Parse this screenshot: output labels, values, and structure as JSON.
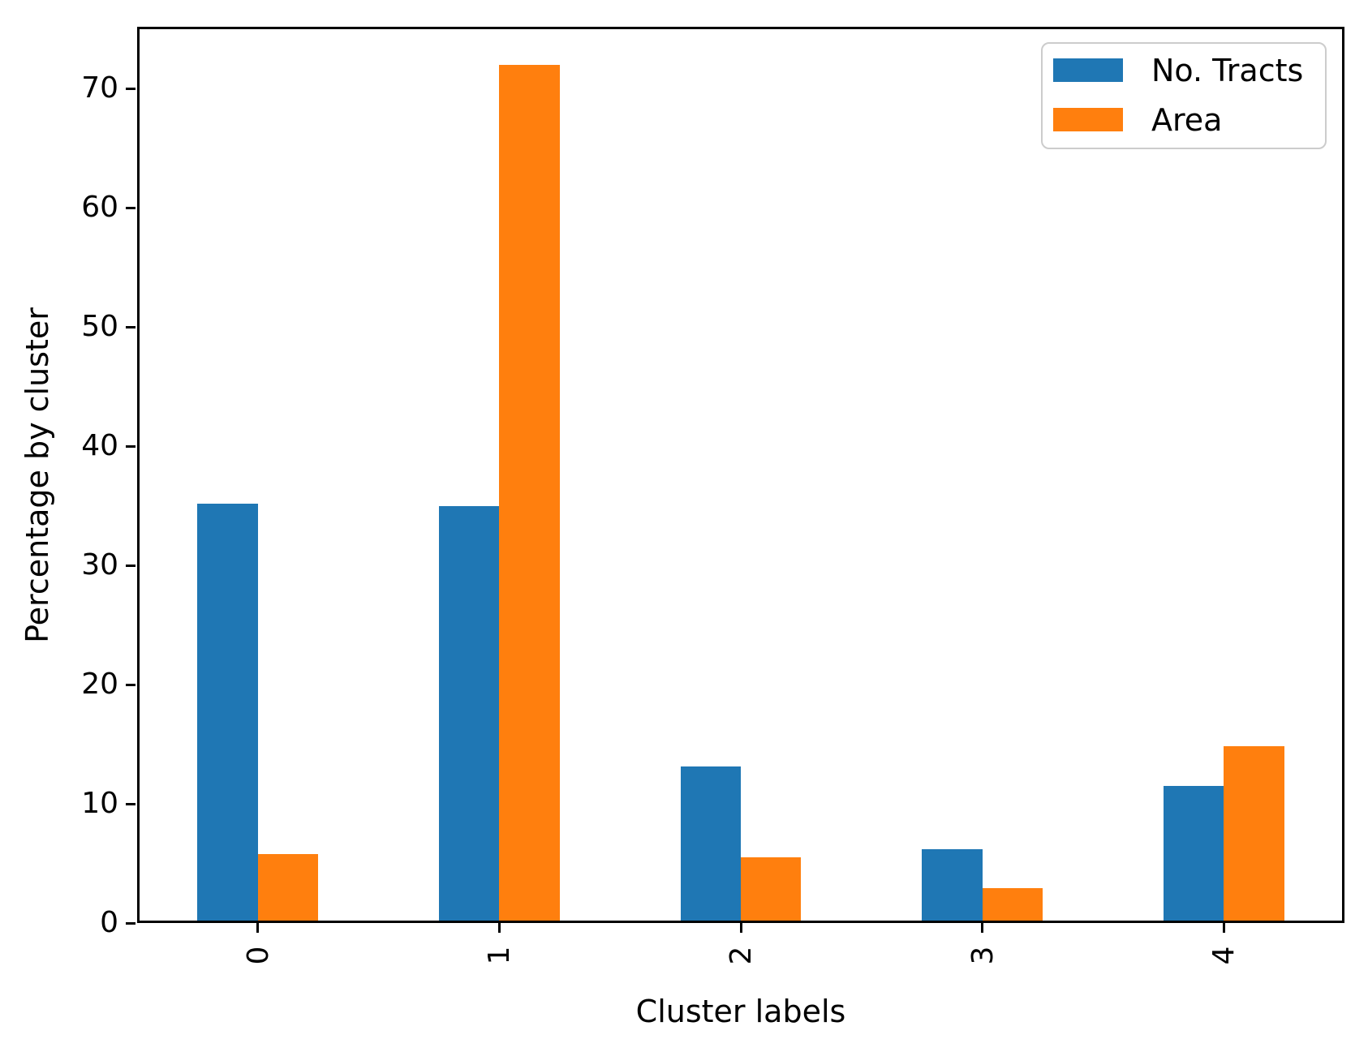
{
  "chart_data": {
    "type": "bar",
    "categories": [
      "0",
      "1",
      "2",
      "3",
      "4"
    ],
    "series": [
      {
        "name": "No. Tracts",
        "color": "#1f77b4",
        "values": [
          35.0,
          34.8,
          12.9,
          6.0,
          11.3
        ]
      },
      {
        "name": "Area",
        "color": "#ff7f0e",
        "values": [
          5.6,
          71.8,
          5.3,
          2.7,
          14.6
        ]
      }
    ],
    "title": "",
    "xlabel": "Cluster labels",
    "ylabel": "Percentage by cluster",
    "ylim": [
      0,
      75.2
    ],
    "yticks": [
      0,
      10,
      20,
      30,
      40,
      50,
      60,
      70
    ],
    "xtick_rotation_deg": 90,
    "grid": false,
    "legend_position": "upper right",
    "axis_color": "#000000",
    "legend_border_color": "#cccccc",
    "background_color": "#ffffff"
  }
}
